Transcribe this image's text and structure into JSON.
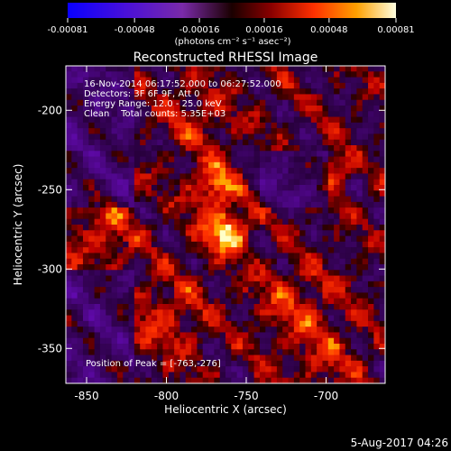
{
  "chart_data": {
    "type": "heatmap",
    "title": "Reconstructed RHESSI Image",
    "xlabel": "Heliocentric X (arcsec)",
    "ylabel": "Heliocentric Y (arcsec)",
    "xlim": [
      -863,
      -663
    ],
    "ylim": [
      -372,
      -172
    ],
    "xticks": [
      -850,
      -800,
      -750,
      -700
    ],
    "yticks": [
      -200,
      -250,
      -300,
      -350
    ],
    "colorbar": {
      "ticks": [
        "-0.00081",
        "-0.00048",
        "-0.00016",
        "0.00016",
        "0.00048",
        "0.00081"
      ],
      "range": [
        -0.00081,
        0.00081
      ],
      "unit_label": "(photons cm⁻² s⁻¹ asec⁻²)"
    },
    "annotations": [
      "16-Nov-2014 06:17:52.000 to 06:27:52.000",
      "Detectors: 3F 6F 9F, Att 0",
      "Energy Range: 12.0 - 25.0 keV",
      "Clean    Total counts: 5.35E+03"
    ],
    "peak_text": "Position of Peak = [-763,-276]",
    "peak": [
      -763,
      -276
    ],
    "colors": {
      "background": "#000000",
      "text": "#ffffff"
    }
  },
  "footer": {
    "timestamp": "5-Aug-2017 04:26"
  }
}
